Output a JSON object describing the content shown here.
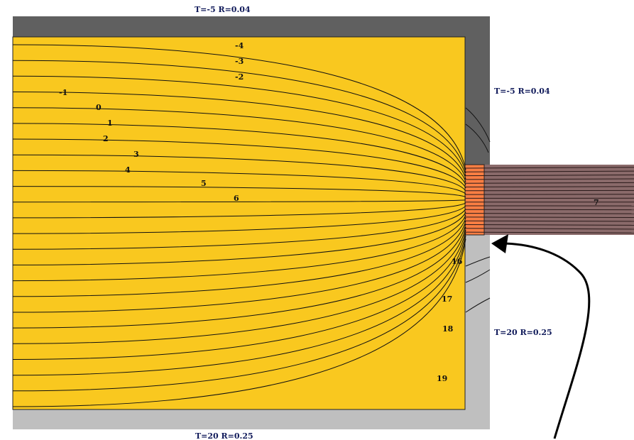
{
  "boundary_conditions": {
    "top": "T=-5 R=0.04",
    "right_upper": "T=-5 R=0.04",
    "right_lower": "T=20 R=0.25",
    "bottom": "T=20 R=0.25"
  },
  "isotherm_labels": {
    "m4": "-4",
    "m3": "-3",
    "m2": "-2",
    "m1": "-1",
    "t0": "0",
    "t1": "1",
    "t2": "2",
    "t3": "3",
    "t4": "4",
    "t5": "5",
    "t6": "6",
    "t7": "7",
    "t16": "16",
    "t17": "17",
    "t18": "18",
    "t19": "19"
  },
  "colors": {
    "insulation": "#f9c81f",
    "cold_side_layer": "#606060",
    "warm_side_layer": "#bfbfbf",
    "bridge_element": "#8a6a6a",
    "bridge_core": "#f97e43",
    "label_blue": "#101a5a",
    "line": "#111111"
  }
}
